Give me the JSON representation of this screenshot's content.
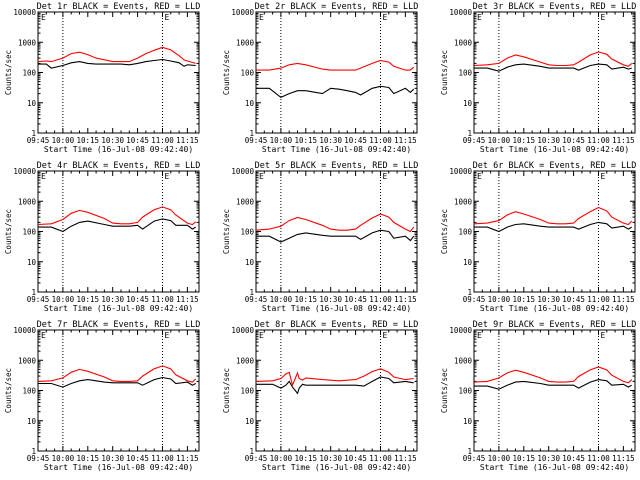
{
  "figure": {
    "shared": {
      "xlabel": "Start Time (16-Jul-08 09:42:40)",
      "ylabel": "Counts/sec",
      "y_scale": "log",
      "ylim": [
        1,
        10000
      ],
      "y_ticks": [
        1,
        10,
        100,
        1000,
        10000
      ],
      "y_tick_labels": [
        "1",
        "10",
        "100",
        "1000",
        "10000"
      ],
      "x_range": [
        "09:45",
        "11:22"
      ],
      "x_ticks": [
        "09:45",
        "10:00",
        "10:15",
        "10:30",
        "10:45",
        "11:00",
        "11:15"
      ],
      "vline_times": [
        "10:00",
        "11:00"
      ],
      "marker_label": "E",
      "colors": {
        "events": "#000000",
        "lld": "#ff0000",
        "axis": "#000000"
      },
      "grid": false
    }
  },
  "chart_data": [
    {
      "type": "line",
      "title": "Det 1r BLACK = Events, RED = LLD",
      "x": [
        "09:45",
        "09:50",
        "09:53",
        "10:00",
        "10:05",
        "10:10",
        "10:15",
        "10:20",
        "10:30",
        "10:35",
        "10:40",
        "10:45",
        "10:50",
        "10:55",
        "11:00",
        "11:05",
        "11:10",
        "11:13",
        "11:15",
        "11:20"
      ],
      "series": [
        {
          "name": "Events",
          "values": [
            190,
            190,
            140,
            170,
            210,
            230,
            200,
            190,
            190,
            190,
            180,
            200,
            230,
            250,
            270,
            240,
            210,
            160,
            180,
            170
          ]
        },
        {
          "name": "LLD",
          "values": [
            230,
            240,
            230,
            300,
            420,
            470,
            390,
            300,
            230,
            230,
            230,
            300,
            420,
            540,
            680,
            560,
            360,
            260,
            240,
            200
          ]
        }
      ]
    },
    {
      "type": "line",
      "title": "Det 2r BLACK = Events, RED = LLD",
      "x": [
        "09:45",
        "09:53",
        "10:00",
        "10:05",
        "10:10",
        "10:15",
        "10:25",
        "10:30",
        "10:35",
        "10:40",
        "10:45",
        "10:48",
        "10:55",
        "11:00",
        "11:05",
        "11:08",
        "11:15",
        "11:18",
        "11:20"
      ],
      "series": [
        {
          "name": "Events",
          "values": [
            30,
            30,
            15,
            20,
            25,
            25,
            20,
            30,
            28,
            25,
            22,
            18,
            30,
            35,
            32,
            20,
            30,
            22,
            28
          ]
        },
        {
          "name": "LLD",
          "values": [
            120,
            120,
            140,
            180,
            200,
            180,
            130,
            120,
            120,
            120,
            120,
            140,
            200,
            250,
            220,
            160,
            120,
            120,
            150
          ]
        }
      ]
    },
    {
      "type": "line",
      "title": "Det 3r BLACK = Events, RED = LLD",
      "x": [
        "09:45",
        "09:53",
        "10:00",
        "10:05",
        "10:10",
        "10:15",
        "10:25",
        "10:30",
        "10:35",
        "10:40",
        "10:45",
        "10:48",
        "10:55",
        "11:00",
        "11:05",
        "11:08",
        "11:15",
        "11:18",
        "11:20"
      ],
      "series": [
        {
          "name": "Events",
          "values": [
            140,
            140,
            110,
            150,
            180,
            190,
            160,
            140,
            140,
            140,
            140,
            120,
            170,
            190,
            180,
            130,
            150,
            130,
            140
          ]
        },
        {
          "name": "LLD",
          "values": [
            170,
            180,
            200,
            300,
            380,
            330,
            220,
            180,
            170,
            170,
            180,
            220,
            380,
            480,
            400,
            280,
            180,
            160,
            200
          ]
        }
      ]
    },
    {
      "type": "line",
      "title": "Det 4r BLACK = Events, RED = LLD",
      "x": [
        "09:45",
        "09:53",
        "10:00",
        "10:05",
        "10:10",
        "10:15",
        "10:25",
        "10:30",
        "10:35",
        "10:40",
        "10:45",
        "10:48",
        "10:55",
        "11:00",
        "11:05",
        "11:08",
        "11:15",
        "11:18",
        "11:20"
      ],
      "series": [
        {
          "name": "Events",
          "values": [
            140,
            140,
            100,
            150,
            200,
            220,
            170,
            150,
            150,
            150,
            160,
            120,
            220,
            260,
            230,
            160,
            160,
            120,
            140
          ]
        },
        {
          "name": "LLD",
          "values": [
            170,
            180,
            250,
            400,
            500,
            430,
            270,
            190,
            180,
            180,
            200,
            300,
            520,
            650,
            520,
            350,
            190,
            170,
            210
          ]
        }
      ]
    },
    {
      "type": "line",
      "title": "Det 5r BLACK = Events, RED = LLD",
      "x": [
        "09:45",
        "09:53",
        "10:00",
        "10:05",
        "10:10",
        "10:15",
        "10:25",
        "10:30",
        "10:35",
        "10:40",
        "10:45",
        "10:48",
        "10:55",
        "11:00",
        "11:05",
        "11:08",
        "11:15",
        "11:18",
        "11:20"
      ],
      "series": [
        {
          "name": "Events",
          "values": [
            70,
            70,
            45,
            60,
            80,
            90,
            75,
            70,
            70,
            70,
            70,
            55,
            90,
            110,
            100,
            60,
            70,
            50,
            70
          ]
        },
        {
          "name": "LLD",
          "values": [
            110,
            120,
            150,
            230,
            290,
            250,
            160,
            120,
            110,
            110,
            120,
            160,
            280,
            380,
            300,
            200,
            120,
            100,
            140
          ]
        }
      ]
    },
    {
      "type": "line",
      "title": "Det 6r BLACK = Events, RED = LLD",
      "x": [
        "09:45",
        "09:53",
        "10:00",
        "10:05",
        "10:10",
        "10:15",
        "10:25",
        "10:30",
        "10:35",
        "10:40",
        "10:45",
        "10:48",
        "10:55",
        "11:00",
        "11:05",
        "11:08",
        "11:15",
        "11:18",
        "11:20"
      ],
      "series": [
        {
          "name": "Events",
          "values": [
            140,
            140,
            100,
            140,
            170,
            180,
            150,
            140,
            140,
            140,
            140,
            120,
            170,
            200,
            180,
            130,
            150,
            120,
            140
          ]
        },
        {
          "name": "LLD",
          "values": [
            180,
            190,
            230,
            350,
            450,
            380,
            250,
            190,
            180,
            180,
            190,
            270,
            450,
            620,
            480,
            300,
            190,
            170,
            220
          ]
        }
      ]
    },
    {
      "type": "line",
      "title": "Det 7r BLACK = Events, RED = LLD",
      "x": [
        "09:45",
        "09:53",
        "10:00",
        "10:05",
        "10:10",
        "10:15",
        "10:25",
        "10:30",
        "10:35",
        "10:40",
        "10:45",
        "10:48",
        "10:55",
        "11:00",
        "11:05",
        "11:08",
        "11:15",
        "11:18",
        "11:20"
      ],
      "series": [
        {
          "name": "Events",
          "values": [
            170,
            170,
            130,
            170,
            210,
            230,
            190,
            180,
            180,
            180,
            180,
            150,
            230,
            270,
            240,
            170,
            190,
            150,
            170
          ]
        },
        {
          "name": "LLD",
          "values": [
            200,
            210,
            260,
            400,
            500,
            430,
            280,
            210,
            200,
            200,
            210,
            300,
            520,
            650,
            520,
            330,
            210,
            190,
            240
          ]
        }
      ]
    },
    {
      "type": "line",
      "title": "Det 8r BLACK = Events, RED = LLD",
      "x": [
        "09:45",
        "09:55",
        "10:00",
        "10:03",
        "10:05",
        "10:07",
        "10:10",
        "10:11",
        "10:13",
        "10:15",
        "10:25",
        "10:35",
        "10:45",
        "10:50",
        "10:55",
        "11:00",
        "11:05",
        "11:08",
        "11:15",
        "11:20"
      ],
      "series": [
        {
          "name": "Events",
          "values": [
            160,
            160,
            120,
            150,
            200,
            130,
            80,
            120,
            160,
            150,
            150,
            150,
            150,
            140,
            200,
            280,
            250,
            180,
            200,
            180
          ]
        },
        {
          "name": "LLD",
          "values": [
            200,
            210,
            250,
            350,
            400,
            150,
            380,
            250,
            220,
            260,
            230,
            210,
            230,
            300,
            420,
            520,
            400,
            280,
            230,
            250
          ]
        }
      ]
    },
    {
      "type": "line",
      "title": "Det 9r BLACK = Events, RED = LLD",
      "x": [
        "09:45",
        "09:53",
        "10:00",
        "10:05",
        "10:10",
        "10:15",
        "10:25",
        "10:30",
        "10:35",
        "10:40",
        "10:45",
        "10:48",
        "10:55",
        "11:00",
        "11:05",
        "11:08",
        "11:15",
        "11:18",
        "11:20"
      ],
      "series": [
        {
          "name": "Events",
          "values": [
            140,
            140,
            110,
            150,
            190,
            200,
            170,
            150,
            150,
            150,
            150,
            120,
            190,
            230,
            210,
            150,
            160,
            130,
            150
          ]
        },
        {
          "name": "LLD",
          "values": [
            190,
            200,
            260,
            380,
            470,
            400,
            260,
            200,
            190,
            190,
            200,
            290,
            480,
            600,
            480,
            320,
            200,
            180,
            230
          ]
        }
      ]
    }
  ]
}
